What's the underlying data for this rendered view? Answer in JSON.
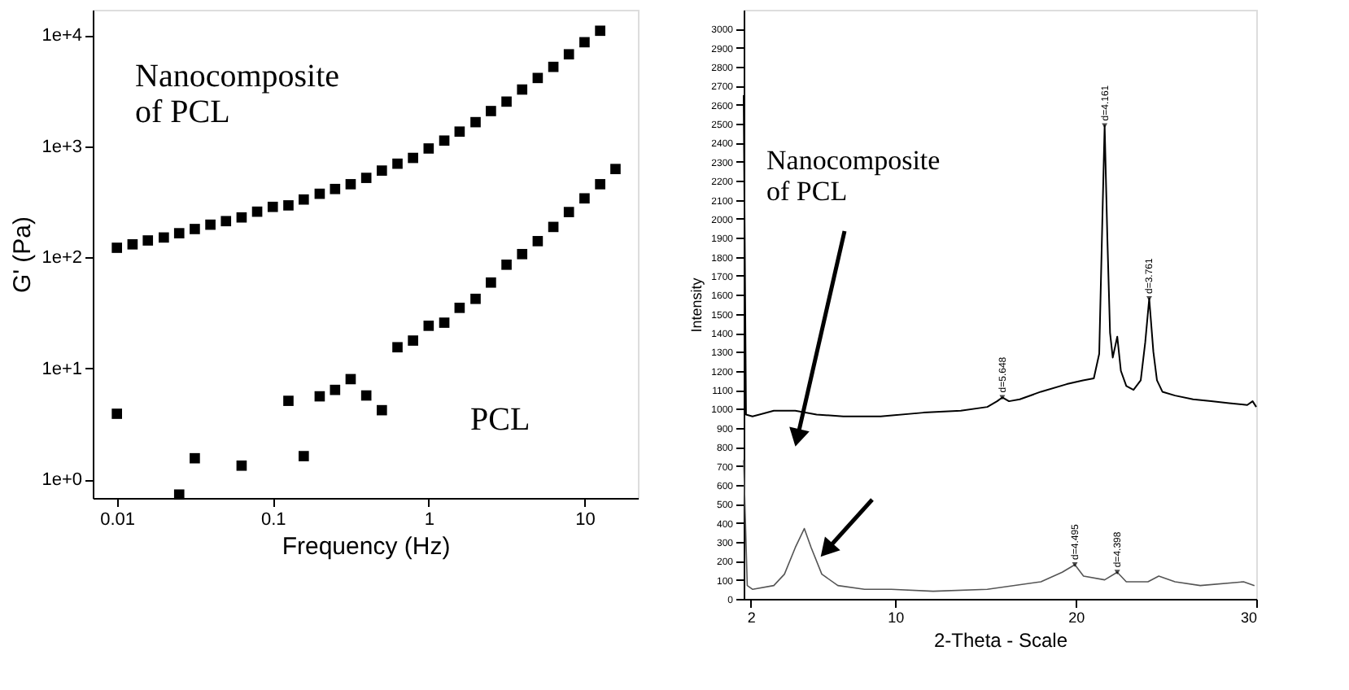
{
  "chart_data": [
    {
      "type": "scatter",
      "xlabel": "Frequency (Hz)",
      "ylabel": "G' (Pa)",
      "log": "xy",
      "grid": false,
      "marker": "square",
      "xlim": [
        0.007,
        22
      ],
      "ylim": [
        0.68,
        17000
      ],
      "xticks": [
        0.01,
        0.1,
        1,
        10
      ],
      "yticks": [
        {
          "value": 1,
          "label": "1e+0"
        },
        {
          "value": 10,
          "label": "1e+1"
        },
        {
          "value": 100,
          "label": "1e+2"
        },
        {
          "value": 1000,
          "label": "1e+3"
        },
        {
          "value": 10000,
          "label": "1e+4"
        }
      ],
      "series": [
        {
          "name": "Nanocomposite of PCL",
          "color": "#000000",
          "x": [
            0.01,
            0.0126,
            0.0158,
            0.02,
            0.0251,
            0.0316,
            0.0398,
            0.0501,
            0.0631,
            0.0794,
            0.1,
            0.126,
            0.158,
            0.2,
            0.251,
            0.316,
            0.398,
            0.501,
            0.631,
            0.794,
            1,
            1.26,
            1.58,
            2,
            2.51,
            3.16,
            3.98,
            5.01,
            6.31,
            7.94,
            10,
            12.6
          ],
          "values": [
            122,
            131,
            142,
            151,
            165,
            180,
            197,
            212,
            229,
            258,
            285,
            294,
            332,
            374,
            413,
            456,
            520,
            605,
            698,
            787,
            957,
            1127,
            1358,
            1652,
            2080,
            2530,
            3250,
            4130,
            5200,
            6750,
            8670,
            11000
          ]
        },
        {
          "name": "PCL",
          "color": "#000000",
          "x": [
            0.01,
            0.0251,
            0.0316,
            0.0631,
            0.126,
            0.158,
            0.2,
            0.251,
            0.316,
            0.398,
            0.501,
            0.631,
            0.794,
            1,
            1.26,
            1.58,
            2,
            2.51,
            3.16,
            3.98,
            5.01,
            6.31,
            7.94,
            10,
            12.6,
            15.8
          ],
          "values": [
            3.9,
            0.73,
            1.55,
            1.33,
            5.1,
            1.62,
            5.6,
            6.4,
            8.0,
            5.7,
            4.2,
            15.5,
            17.8,
            24.2,
            25.8,
            35.1,
            42.3,
            59.3,
            85.9,
            107,
            140,
            188,
            256,
            340,
            456,
            625
          ]
        }
      ]
    },
    {
      "type": "line",
      "xlabel": "2-Theta - Scale",
      "ylabel": "Intensity",
      "grid": false,
      "marker": "none",
      "xlim": [
        1.6,
        30
      ],
      "ylim": [
        0,
        3100
      ],
      "xticks": [
        2,
        10,
        20,
        30
      ],
      "yticks": [
        0,
        100,
        200,
        300,
        400,
        500,
        600,
        700,
        800,
        900,
        1000,
        1100,
        1200,
        1300,
        1400,
        1500,
        1600,
        1700,
        1800,
        1900,
        2000,
        2100,
        2200,
        2300,
        2400,
        2500,
        2600,
        2700,
        2800,
        2900,
        3000
      ],
      "series": [
        {
          "name": "Nanocomposite of PCL",
          "color": "#000000",
          "x": [
            1.6,
            1.73,
            2.09,
            3.27,
            4.46,
            5.64,
            7.12,
            9.19,
            11.56,
            13.63,
            15.1,
            15.64,
            15.93,
            16.3,
            16.9,
            18.07,
            19.5,
            20.4,
            21.0,
            21.3,
            21.5,
            21.6,
            21.75,
            21.9,
            22.05,
            22.3,
            22.5,
            22.8,
            23.2,
            23.6,
            23.85,
            24.07,
            24.3,
            24.5,
            24.8,
            25.5,
            26.5,
            27.5,
            28.5,
            29.5,
            29.8,
            30
          ],
          "values": [
            2650,
            970,
            960,
            990,
            990,
            970,
            960,
            960,
            980,
            990,
            1010,
            1040,
            1060,
            1040,
            1050,
            1090,
            1130,
            1150,
            1160,
            1290,
            2100,
            2490,
            1900,
            1400,
            1270,
            1380,
            1200,
            1120,
            1100,
            1150,
            1350,
            1580,
            1300,
            1150,
            1090,
            1070,
            1050,
            1040,
            1030,
            1020,
            1040,
            1010
          ]
        },
        {
          "color": "#555555",
          "x": [
            1.6,
            1.8,
            2.1,
            3.27,
            3.86,
            4.46,
            4.96,
            5.34,
            5.93,
            6.82,
            8.3,
            9.78,
            12.1,
            15.1,
            18.07,
            19.25,
            19.95,
            20.43,
            21.6,
            22.3,
            22.8,
            24.0,
            24.6,
            25.5,
            26.9,
            29.3,
            29.9
          ],
          "values": [
            730,
            70,
            50,
            70,
            130,
            270,
            370,
            270,
            130,
            70,
            50,
            50,
            40,
            50,
            90,
            140,
            180,
            120,
            100,
            140,
            90,
            90,
            120,
            90,
            70,
            90,
            70
          ]
        }
      ],
      "annotations": [
        {
          "text": "d=4.161",
          "x": 21.6,
          "y": 2490
        },
        {
          "text": "d=3.761",
          "x": 24.07,
          "y": 1580
        },
        {
          "text": "d=5.648",
          "x": 15.93,
          "y": 1060
        },
        {
          "text": "d=4.495",
          "x": 19.95,
          "y": 180
        },
        {
          "text": "d=4.398",
          "x": 22.3,
          "y": 140
        }
      ]
    }
  ]
}
